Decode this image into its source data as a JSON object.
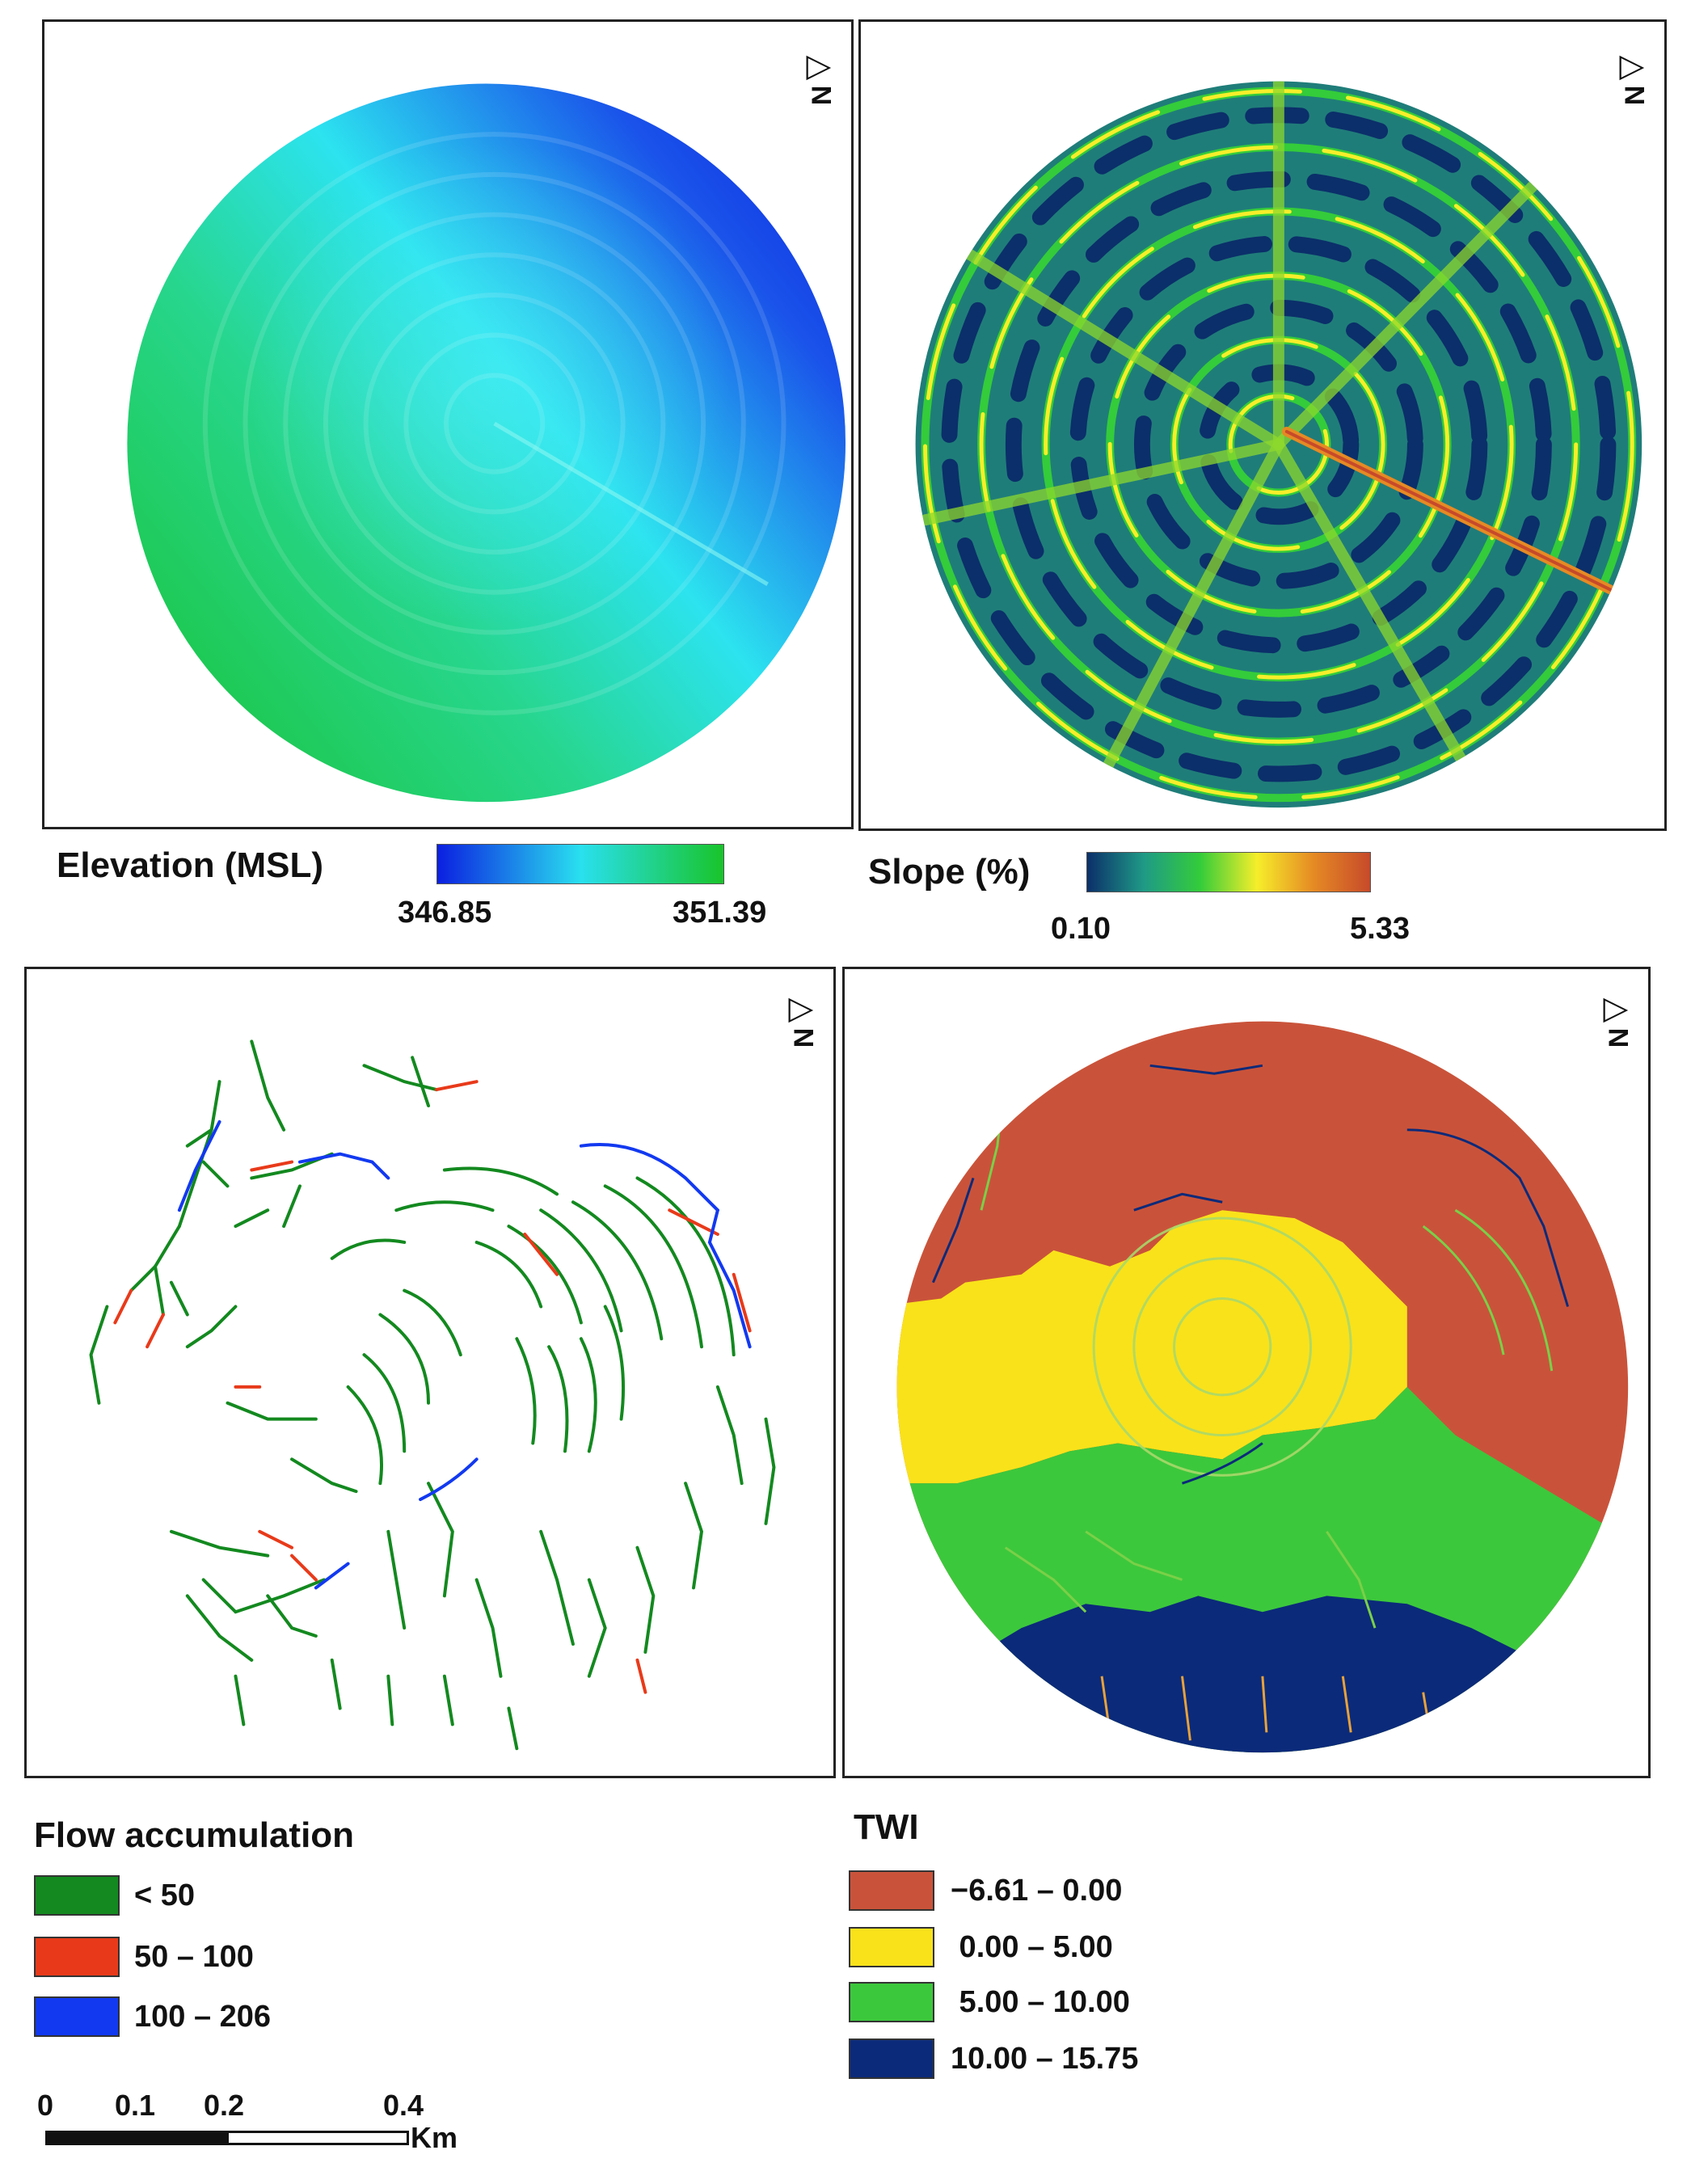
{
  "panels": {
    "elevation": {
      "legend_title": "Elevation (MSL)",
      "min_label": "346.85",
      "max_label": "351.39",
      "ramp_colors": [
        "#0b1fe0",
        "#29e0ef",
        "#19c42a"
      ]
    },
    "slope": {
      "legend_title": "Slope (%)",
      "min_label": "0.10",
      "max_label": "5.33",
      "ramp_colors": [
        "#0b2f6a",
        "#1f9a86",
        "#34cc3a",
        "#f6ee2a",
        "#e58a24",
        "#c74a2a"
      ]
    },
    "flow": {
      "legend_title": "Flow accumulation",
      "classes": [
        {
          "label": "< 50",
          "color": "#13891f"
        },
        {
          "label": "50 – 100",
          "color": "#e83a1a"
        },
        {
          "label": "100 – 206",
          "color": "#1239f0"
        }
      ]
    },
    "twi": {
      "legend_title": "TWI",
      "classes": [
        {
          "label": "−6.61 – 0.00",
          "color": "#c9533a"
        },
        {
          "label": " 0.00 – 5.00",
          "color": "#f9e21a"
        },
        {
          "label": " 5.00 – 10.00",
          "color": "#3cc83c"
        },
        {
          "label": "10.00 – 15.75",
          "color": "#0b2a7a"
        }
      ]
    }
  },
  "north_arrow": {
    "letter": "N"
  },
  "scale_bar": {
    "ticks": [
      "0",
      "0.1",
      "0.2",
      "0.4"
    ],
    "unit": "Km"
  }
}
